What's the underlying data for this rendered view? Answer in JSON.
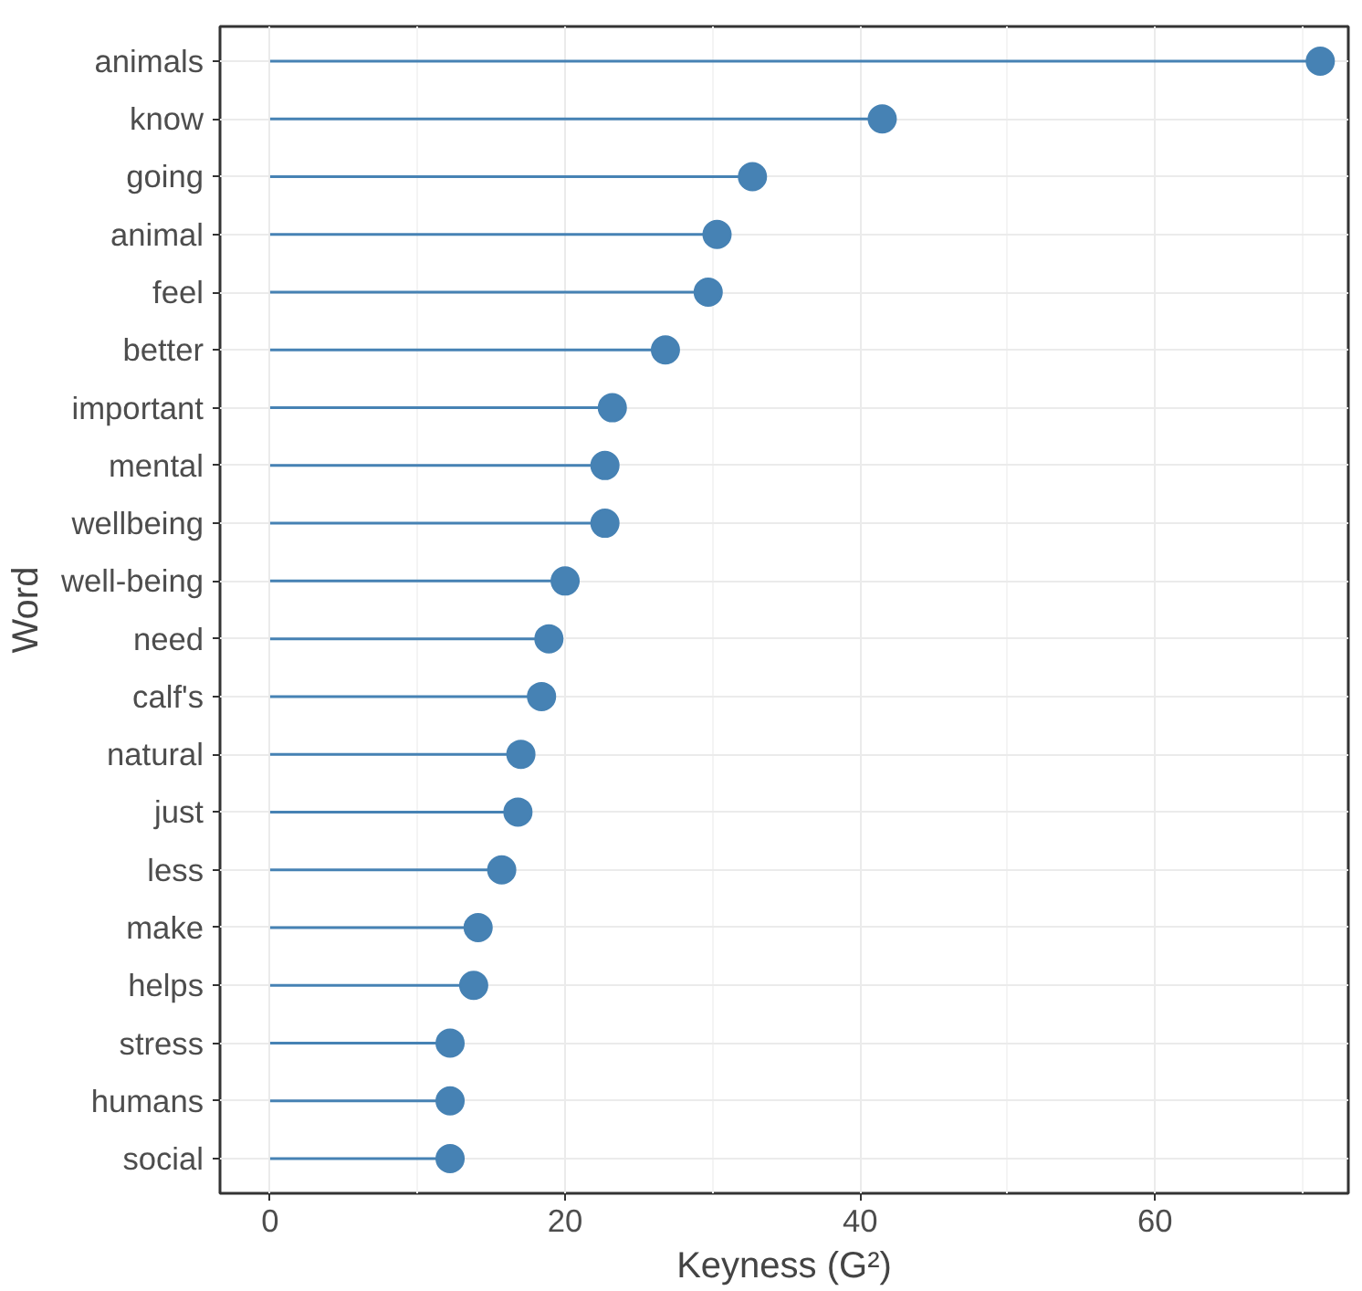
{
  "chart_data": {
    "type": "lollipop",
    "orientation": "horizontal",
    "xlabel": "Keyness (G²)",
    "ylabel": "Word",
    "categories": [
      "animals",
      "know",
      "going",
      "animal",
      "feel",
      "better",
      "important",
      "mental",
      "wellbeing",
      "well-being",
      "need",
      "calf's",
      "natural",
      "just",
      "less",
      "make",
      "helps",
      "stress",
      "humans",
      "social"
    ],
    "values": [
      71.2,
      41.5,
      32.7,
      30.3,
      29.7,
      26.8,
      23.2,
      22.7,
      22.7,
      20.0,
      18.9,
      18.4,
      17.0,
      16.8,
      15.7,
      14.1,
      13.8,
      12.2,
      12.2,
      12.2
    ],
    "color": "#4682b4",
    "xlim": [
      -3.4,
      73.1
    ],
    "xticks": [
      0,
      20,
      40,
      60
    ],
    "grid": true,
    "marker": "circle"
  }
}
